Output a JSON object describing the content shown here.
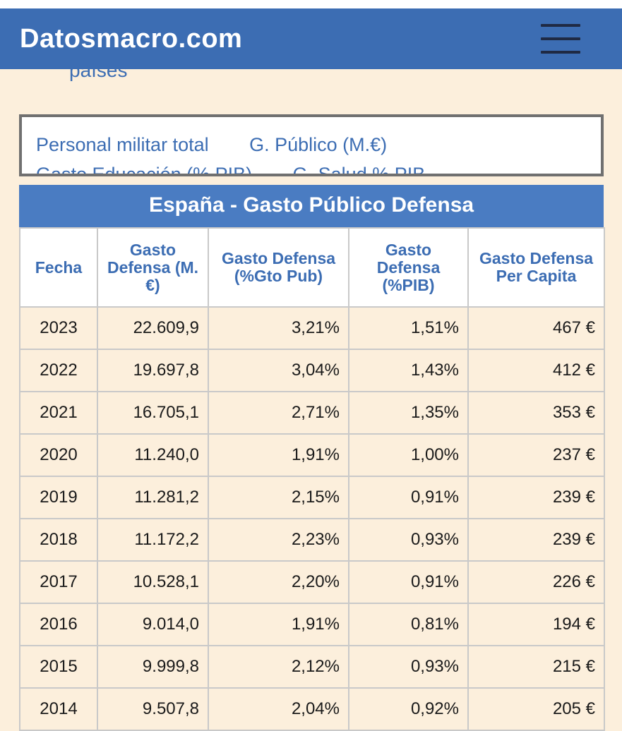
{
  "header": {
    "logo": "Datosmacro.com",
    "menu_icon": "hamburger-menu-icon",
    "background_color": "#3c6db3"
  },
  "breadcrumb_fragment": "países",
  "indicators": {
    "row1": [
      "Personal militar total",
      "G. Público (M.€)"
    ],
    "row2": [
      "Gasto Educación (% PIB)",
      "G. Salud % PIB"
    ]
  },
  "table": {
    "title": "España - Gasto Público Defensa",
    "columns": [
      "Fecha",
      "Gasto Defensa (M.€)",
      "Gasto Defensa (%Gto Pub)",
      "Gasto Defensa (%PIB)",
      "Gasto Defensa Per Capita"
    ],
    "rows": [
      [
        "2023",
        "22.609,9",
        "3,21%",
        "1,51%",
        "467 €"
      ],
      [
        "2022",
        "19.697,8",
        "3,04%",
        "1,43%",
        "412 €"
      ],
      [
        "2021",
        "16.705,1",
        "2,71%",
        "1,35%",
        "353 €"
      ],
      [
        "2020",
        "11.240,0",
        "1,91%",
        "1,00%",
        "237 €"
      ],
      [
        "2019",
        "11.281,2",
        "2,15%",
        "0,91%",
        "239 €"
      ],
      [
        "2018",
        "11.172,2",
        "2,23%",
        "0,93%",
        "239 €"
      ],
      [
        "2017",
        "10.528,1",
        "2,20%",
        "0,91%",
        "226 €"
      ],
      [
        "2016",
        "9.014,0",
        "1,91%",
        "0,81%",
        "194 €"
      ],
      [
        "2015",
        "9.999,8",
        "2,12%",
        "0,93%",
        "215 €"
      ],
      [
        "2014",
        "9.507,8",
        "2,04%",
        "0,92%",
        "205 €"
      ]
    ]
  }
}
